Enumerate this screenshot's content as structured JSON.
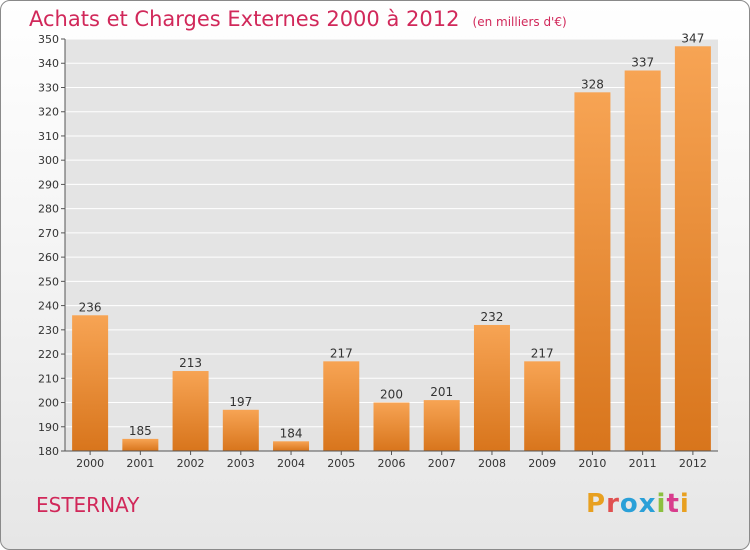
{
  "header": {
    "title": "Achats et Charges Externes 2000 à 2012",
    "unit_label": "(en milliers d'€)"
  },
  "footer": {
    "commune": "ESTERNAY",
    "logo_letters": [
      "P",
      "r",
      "o",
      "x",
      "i",
      "t",
      "i"
    ]
  },
  "colors": {
    "title": "#d1285a",
    "bar_top": "#f7a454",
    "bar_bottom": "#d8751c",
    "logo": [
      "#e8a020",
      "#e05050",
      "#2aa0d8",
      "#2aa0d8",
      "#8cc040",
      "#d83c8c",
      "#e8a020"
    ]
  },
  "chart_data": {
    "type": "bar",
    "title": "Achats et Charges Externes 2000 à 2012",
    "subtitle": "(en milliers d'€)",
    "categories": [
      "2000",
      "2001",
      "2002",
      "2003",
      "2004",
      "2005",
      "2006",
      "2007",
      "2008",
      "2009",
      "2010",
      "2011",
      "2012"
    ],
    "values": [
      236,
      185,
      213,
      197,
      184,
      217,
      200,
      201,
      232,
      217,
      328,
      337,
      347
    ],
    "ylim": [
      180,
      350
    ],
    "yticks": [
      180,
      190,
      200,
      210,
      220,
      230,
      240,
      250,
      260,
      270,
      280,
      290,
      300,
      310,
      320,
      330,
      340,
      350
    ],
    "grid": true,
    "xlabel": "",
    "ylabel": ""
  }
}
